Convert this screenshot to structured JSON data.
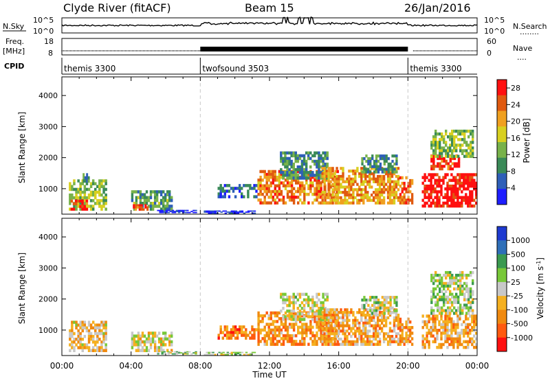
{
  "header": {
    "station": "Clyde River (fitACF)",
    "beam": "Beam 15",
    "date": "26/Jan/2016"
  },
  "strip_labels": {
    "nsky": "N.Sky",
    "freq_line1": "Freq.",
    "freq_line2": "[MHz]",
    "cpid": "CPID",
    "nsearch": "N.Search",
    "nave": "Nave",
    "nsky_dots": "........",
    "nave_dots": "...."
  },
  "noise_axis": {
    "left_top": "10^5",
    "left_bottom": "10^0",
    "right_top": "10^5",
    "right_bottom": "10^0"
  },
  "freq_axis": {
    "left_top": "18",
    "left_bottom": "8",
    "right_top": "60",
    "right_bottom": "0"
  },
  "cpid_segments": [
    {
      "name": "themis 3300",
      "start_hour": 0,
      "end_hour": 8.0
    },
    {
      "name": "twofsound 3503",
      "start_hour": 8.0,
      "end_hour": 20.0
    },
    {
      "name": "themis 3300",
      "start_hour": 20.0,
      "end_hour": 24
    }
  ],
  "colors": {
    "power_scale": [
      "#1e1eff",
      "#2e5fb8",
      "#3a8a58",
      "#78b24a",
      "#d8d020",
      "#f0a020",
      "#e05a10",
      "#ff1010"
    ],
    "velocity_scale": [
      "#ff1010",
      "#ff5a10",
      "#f08a10",
      "#f5b020",
      "#c8c8c8",
      "#78c838",
      "#3a9a50",
      "#2e6fb8",
      "#1e3ad0"
    ]
  },
  "chart_data": [
    {
      "type": "heatmap",
      "title": "Power",
      "ylabel": "Slant Range [km]",
      "xlabel": "Time UT",
      "x_ticks": [
        "00:00",
        "04:00",
        "08:00",
        "12:00",
        "16:00",
        "20:00",
        "00:00"
      ],
      "x_range_hours": [
        0,
        24
      ],
      "y_ticks": [
        1000,
        2000,
        3000,
        4000
      ],
      "y_range_km": [
        180,
        4600
      ],
      "colorbar_label": "Power [dB]",
      "colorbar_ticks": [
        4,
        8,
        12,
        16,
        20,
        24,
        28
      ],
      "colorbar_range": [
        0,
        30
      ],
      "regions": [
        {
          "t0": 0.4,
          "t1": 2.6,
          "r0": 300,
          "r1": 1300,
          "level": 0.45
        },
        {
          "t0": 0.5,
          "t1": 1.5,
          "r0": 300,
          "r1": 650,
          "level": 0.92
        },
        {
          "t0": 1.2,
          "t1": 1.6,
          "r0": 1200,
          "r1": 1500,
          "level": 0.3
        },
        {
          "t0": 4.0,
          "t1": 6.4,
          "r0": 300,
          "r1": 950,
          "level": 0.35
        },
        {
          "t0": 4.1,
          "t1": 5.0,
          "r0": 300,
          "r1": 500,
          "level": 0.85
        },
        {
          "t0": 5.5,
          "t1": 7.8,
          "r0": 220,
          "r1": 320,
          "level": 0.05
        },
        {
          "t0": 8.2,
          "t1": 11.2,
          "r0": 200,
          "r1": 300,
          "level": 0.08
        },
        {
          "t0": 9.0,
          "t1": 11.3,
          "r0": 700,
          "r1": 1150,
          "level": 0.2
        },
        {
          "t0": 11.3,
          "t1": 16.0,
          "r0": 500,
          "r1": 1600,
          "level": 0.75
        },
        {
          "t0": 12.6,
          "t1": 15.4,
          "r0": 1300,
          "r1": 2200,
          "level": 0.3
        },
        {
          "t0": 15.0,
          "t1": 19.5,
          "r0": 500,
          "r1": 1700,
          "level": 0.7
        },
        {
          "t0": 17.3,
          "t1": 19.4,
          "r0": 1500,
          "r1": 2100,
          "level": 0.3
        },
        {
          "t0": 19.5,
          "t1": 20.3,
          "r0": 500,
          "r1": 1400,
          "level": 0.8
        },
        {
          "t0": 20.8,
          "t1": 24.0,
          "r0": 400,
          "r1": 1500,
          "level": 0.98
        },
        {
          "t0": 21.3,
          "t1": 23.0,
          "r0": 1600,
          "r1": 2100,
          "level": 0.9
        },
        {
          "t0": 21.3,
          "t1": 23.8,
          "r0": 2000,
          "r1": 2900,
          "level": 0.45
        }
      ]
    },
    {
      "type": "heatmap",
      "title": "Velocity",
      "ylabel": "Slant Range [km]",
      "xlabel": "Time UT",
      "x_ticks": [
        "00:00",
        "04:00",
        "08:00",
        "12:00",
        "16:00",
        "20:00",
        "00:00"
      ],
      "x_range_hours": [
        0,
        24
      ],
      "y_ticks": [
        1000,
        2000,
        3000,
        4000
      ],
      "y_range_km": [
        180,
        4600
      ],
      "colorbar_label": "Velocity [m s^-1]",
      "colorbar_ticks": [
        1000,
        500,
        100,
        25,
        -25,
        -100,
        -500,
        -1000
      ],
      "regions": [
        {
          "t0": 0.4,
          "t1": 2.6,
          "r0": 300,
          "r1": 1300,
          "level": 0.4
        },
        {
          "t0": 4.0,
          "t1": 6.4,
          "r0": 300,
          "r1": 950,
          "level": 0.45
        },
        {
          "t0": 5.5,
          "t1": 7.8,
          "r0": 220,
          "r1": 320,
          "level": 0.6
        },
        {
          "t0": 8.2,
          "t1": 11.2,
          "r0": 200,
          "r1": 300,
          "level": 0.55
        },
        {
          "t0": 9.0,
          "t1": 11.3,
          "r0": 700,
          "r1": 1150,
          "level": 0.25
        },
        {
          "t0": 11.3,
          "t1": 16.0,
          "r0": 500,
          "r1": 1600,
          "level": 0.3
        },
        {
          "t0": 12.6,
          "t1": 15.4,
          "r0": 1300,
          "r1": 2200,
          "level": 0.5
        },
        {
          "t0": 15.0,
          "t1": 19.5,
          "r0": 500,
          "r1": 1700,
          "level": 0.35
        },
        {
          "t0": 17.3,
          "t1": 19.4,
          "r0": 1500,
          "r1": 2100,
          "level": 0.55
        },
        {
          "t0": 19.5,
          "t1": 20.3,
          "r0": 500,
          "r1": 1400,
          "level": 0.3
        },
        {
          "t0": 20.8,
          "t1": 24.0,
          "r0": 400,
          "r1": 1500,
          "level": 0.35
        },
        {
          "t0": 21.3,
          "t1": 23.8,
          "r0": 1500,
          "r1": 2900,
          "level": 0.55
        }
      ]
    }
  ]
}
